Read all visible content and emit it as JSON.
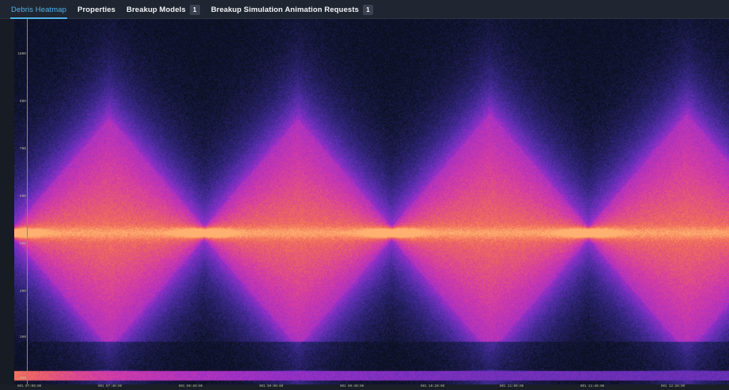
{
  "tabs": [
    {
      "label": "Debris Heatmap",
      "active": true
    },
    {
      "label": "Properties",
      "active": false
    },
    {
      "label": "Breakup Models",
      "badge": "1",
      "active": false
    },
    {
      "label": "Breakup Simulation Animation Requests",
      "badge": "1",
      "active": false
    }
  ],
  "heatmap": {
    "colormap": [
      "#0b1020",
      "#2a2370",
      "#5b2fb0",
      "#9a2fc8",
      "#d23aa8",
      "#f06a5a",
      "#ffb070"
    ],
    "axis_color": "#8a8f6a"
  },
  "y_axis": {
    "ticks": [
      "1000",
      "800",
      "700",
      "600",
      "500",
      "400",
      "300",
      "200"
    ]
  },
  "x_axis": {
    "ticks": [
      "001 07:00:00",
      "001 07:40:00",
      "001 08:20:00",
      "001 09:00:00",
      "001 09:40:00",
      "001 10:20:00",
      "001 11:00:00",
      "001 11:40:00",
      "001 12:20:00"
    ]
  }
}
